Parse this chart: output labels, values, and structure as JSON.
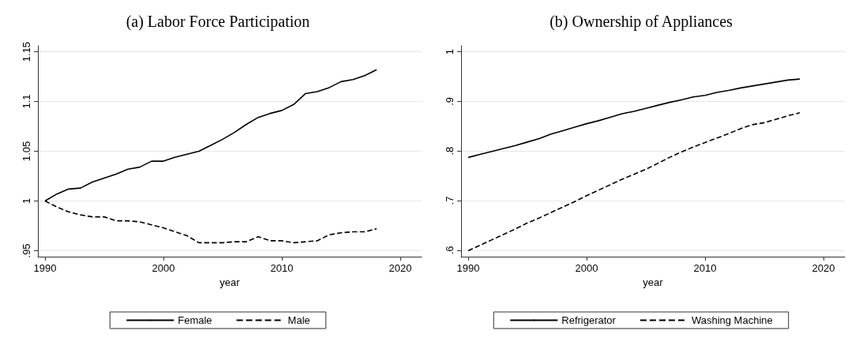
{
  "chart_data": [
    {
      "type": "line",
      "title": "(a) Labor Force Participation",
      "xlabel": "year",
      "x": [
        1990,
        1991,
        1992,
        1993,
        1994,
        1995,
        1996,
        1997,
        1998,
        1999,
        2000,
        2001,
        2002,
        2003,
        2004,
        2005,
        2006,
        2007,
        2008,
        2009,
        2010,
        2011,
        2012,
        2013,
        2014,
        2015,
        2016,
        2017,
        2018
      ],
      "series": [
        {
          "name": "Female",
          "color": "#000000",
          "line_style": "solid",
          "values": [
            1.0,
            1.007,
            1.012,
            1.013,
            1.019,
            1.023,
            1.027,
            1.032,
            1.034,
            1.04,
            1.04,
            1.044,
            1.047,
            1.05,
            1.056,
            1.062,
            1.069,
            1.077,
            1.084,
            1.088,
            1.091,
            1.097,
            1.108,
            1.11,
            1.114,
            1.12,
            1.122,
            1.126,
            1.132
          ]
        },
        {
          "name": "Male",
          "color": "#000000",
          "line_style": "dashed",
          "values": [
            1.0,
            0.994,
            0.989,
            0.986,
            0.984,
            0.984,
            0.98,
            0.98,
            0.979,
            0.976,
            0.973,
            0.969,
            0.965,
            0.958,
            0.958,
            0.958,
            0.959,
            0.959,
            0.964,
            0.96,
            0.96,
            0.958,
            0.959,
            0.96,
            0.966,
            0.968,
            0.969,
            0.969,
            0.972
          ]
        }
      ],
      "xlim": [
        1989.4,
        2021.8
      ],
      "xticks": [
        1990,
        2000,
        2010,
        2020
      ],
      "ylim": [
        0.944,
        1.156
      ],
      "yticks": [
        {
          "value": 0.95,
          "label": ".95"
        },
        {
          "value": 1,
          "label": "1"
        },
        {
          "value": 1.05,
          "label": "1.05"
        },
        {
          "value": 1.1,
          "label": "1.1"
        },
        {
          "value": 1.15,
          "label": "1.15"
        }
      ],
      "grid": "y",
      "legend": "bottom",
      "marker": "none"
    },
    {
      "type": "line",
      "title": "(b) Ownership of Appliances",
      "xlabel": "year",
      "x": [
        1990,
        1991,
        1992,
        1993,
        1994,
        1995,
        1996,
        1997,
        1998,
        1999,
        2000,
        2001,
        2002,
        2003,
        2004,
        2005,
        2006,
        2007,
        2008,
        2009,
        2010,
        2011,
        2012,
        2013,
        2014,
        2015,
        2016,
        2017,
        2018
      ],
      "series": [
        {
          "name": "Refrigerator",
          "color": "#000000",
          "line_style": "solid",
          "values": [
            0.787,
            0.793,
            0.799,
            0.805,
            0.811,
            0.818,
            0.825,
            0.834,
            0.841,
            0.848,
            0.855,
            0.861,
            0.868,
            0.875,
            0.88,
            0.886,
            0.892,
            0.898,
            0.903,
            0.909,
            0.912,
            0.918,
            0.922,
            0.927,
            0.931,
            0.935,
            0.939,
            0.943,
            0.945
          ]
        },
        {
          "name": "Washing Machine",
          "color": "#000000",
          "line_style": "dashed",
          "values": [
            0.599,
            0.61,
            0.621,
            0.632,
            0.643,
            0.655,
            0.665,
            0.676,
            0.687,
            0.698,
            0.71,
            0.721,
            0.732,
            0.743,
            0.753,
            0.763,
            0.775,
            0.787,
            0.798,
            0.808,
            0.817,
            0.826,
            0.835,
            0.845,
            0.853,
            0.857,
            0.864,
            0.871,
            0.877
          ]
        }
      ],
      "xlim": [
        1989.4,
        2021.8
      ],
      "xticks": [
        1990,
        2000,
        2010,
        2020
      ],
      "ylim": [
        0.587,
        1.012
      ],
      "yticks": [
        {
          "value": 0.6,
          "label": ".6"
        },
        {
          "value": 0.7,
          "label": ".7"
        },
        {
          "value": 0.8,
          "label": ".8"
        },
        {
          "value": 0.9,
          "label": ".9"
        },
        {
          "value": 1,
          "label": "1"
        }
      ],
      "grid": "y",
      "legend": "bottom",
      "marker": "none"
    }
  ]
}
